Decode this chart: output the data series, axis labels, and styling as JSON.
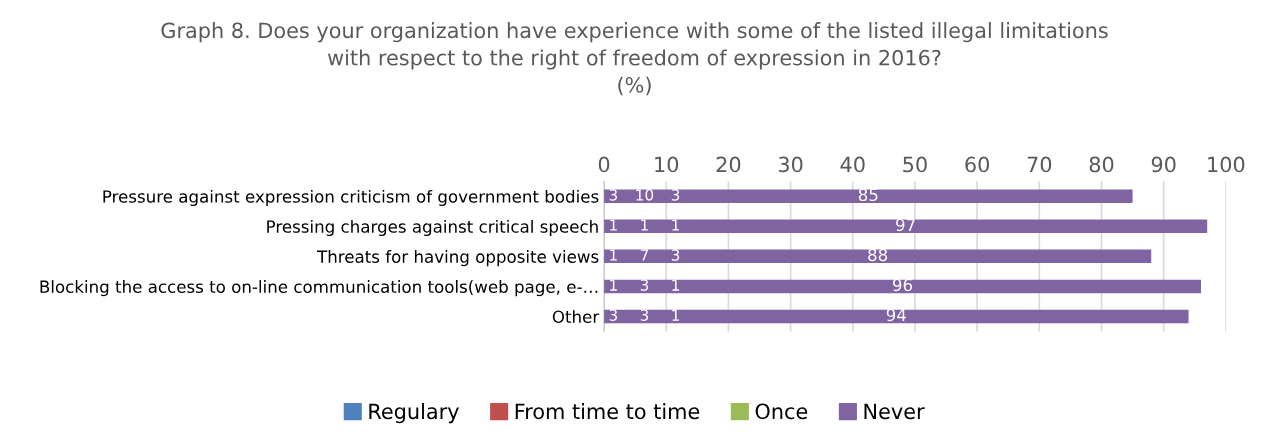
{
  "chart_data": {
    "type": "bar",
    "orientation": "horizontal",
    "title": "Graph 8. Does your organization have experience with some of the listed illegal limitations\nwith respect to the right of freedom of expression in 2016?\n(%)",
    "categories": [
      "Pressure against expression criticism of government bodies",
      "Pressing charges against critical speech",
      "Threats for having opposite views",
      "Blocking the access to on-line communication tools(web page, e-…",
      "Other"
    ],
    "series": [
      {
        "name": "Regulary",
        "color": "#4f81bd",
        "values": [
          null,
          null,
          null,
          null,
          null
        ]
      },
      {
        "name": "From time to time",
        "color": "#c0504d",
        "values": [
          null,
          null,
          null,
          null,
          null
        ]
      },
      {
        "name": "Once",
        "color": "#9bbb59",
        "values": [
          null,
          null,
          null,
          null,
          null
        ]
      },
      {
        "name": "Never",
        "color": "#8064a2",
        "values": [
          85,
          97,
          88,
          96,
          94
        ]
      }
    ],
    "annotations": [
      "3",
      "10",
      "3",
      "1",
      "1",
      "1",
      "1",
      "7",
      "3",
      "1",
      "3",
      "1",
      "3",
      "3",
      "1"
    ],
    "xlim": [
      0,
      100
    ],
    "xticks": [
      0,
      10,
      20,
      30,
      40,
      50,
      60,
      70,
      80,
      90,
      100
    ],
    "grid": "x",
    "legend": "bottom",
    "data_labels": true
  }
}
